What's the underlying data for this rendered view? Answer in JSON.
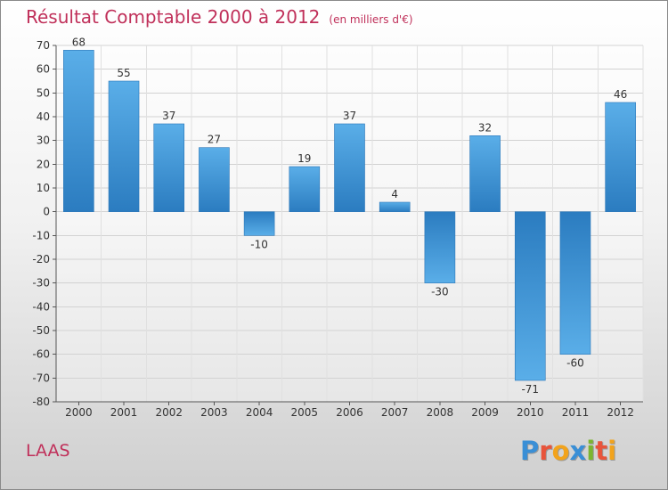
{
  "chart_data": {
    "type": "bar",
    "title": "Résultat Comptable 2000 à 2012",
    "unit_note": "(en milliers d'€)",
    "categories": [
      "2000",
      "2001",
      "2002",
      "2003",
      "2004",
      "2005",
      "2006",
      "2007",
      "2008",
      "2009",
      "2010",
      "2011",
      "2012"
    ],
    "values": [
      68,
      55,
      37,
      27,
      -10,
      19,
      37,
      4,
      -30,
      32,
      -71,
      -60,
      46
    ],
    "ylim": [
      -80,
      70
    ],
    "yticks": [
      70,
      60,
      50,
      40,
      30,
      20,
      10,
      0,
      -10,
      -20,
      -30,
      -40,
      -50,
      -60,
      -70,
      -80
    ],
    "grid": true,
    "xlabel": "",
    "ylabel": ""
  },
  "commune": "LAAS",
  "logo": {
    "text": "Proxiti",
    "letters": [
      {
        "ch": "P",
        "color": "#3a8fd6"
      },
      {
        "ch": "r",
        "color": "#e8543b"
      },
      {
        "ch": "o",
        "color": "#f2a31c"
      },
      {
        "ch": "x",
        "color": "#3a8fd6"
      },
      {
        "ch": "i",
        "color": "#7cb530"
      },
      {
        "ch": "t",
        "color": "#e8543b"
      },
      {
        "ch": "i",
        "color": "#f2a31c"
      }
    ]
  },
  "colors": {
    "title": "#c0305a",
    "bar_light": "#5aaee8",
    "bar_dark": "#2b7cc0"
  }
}
